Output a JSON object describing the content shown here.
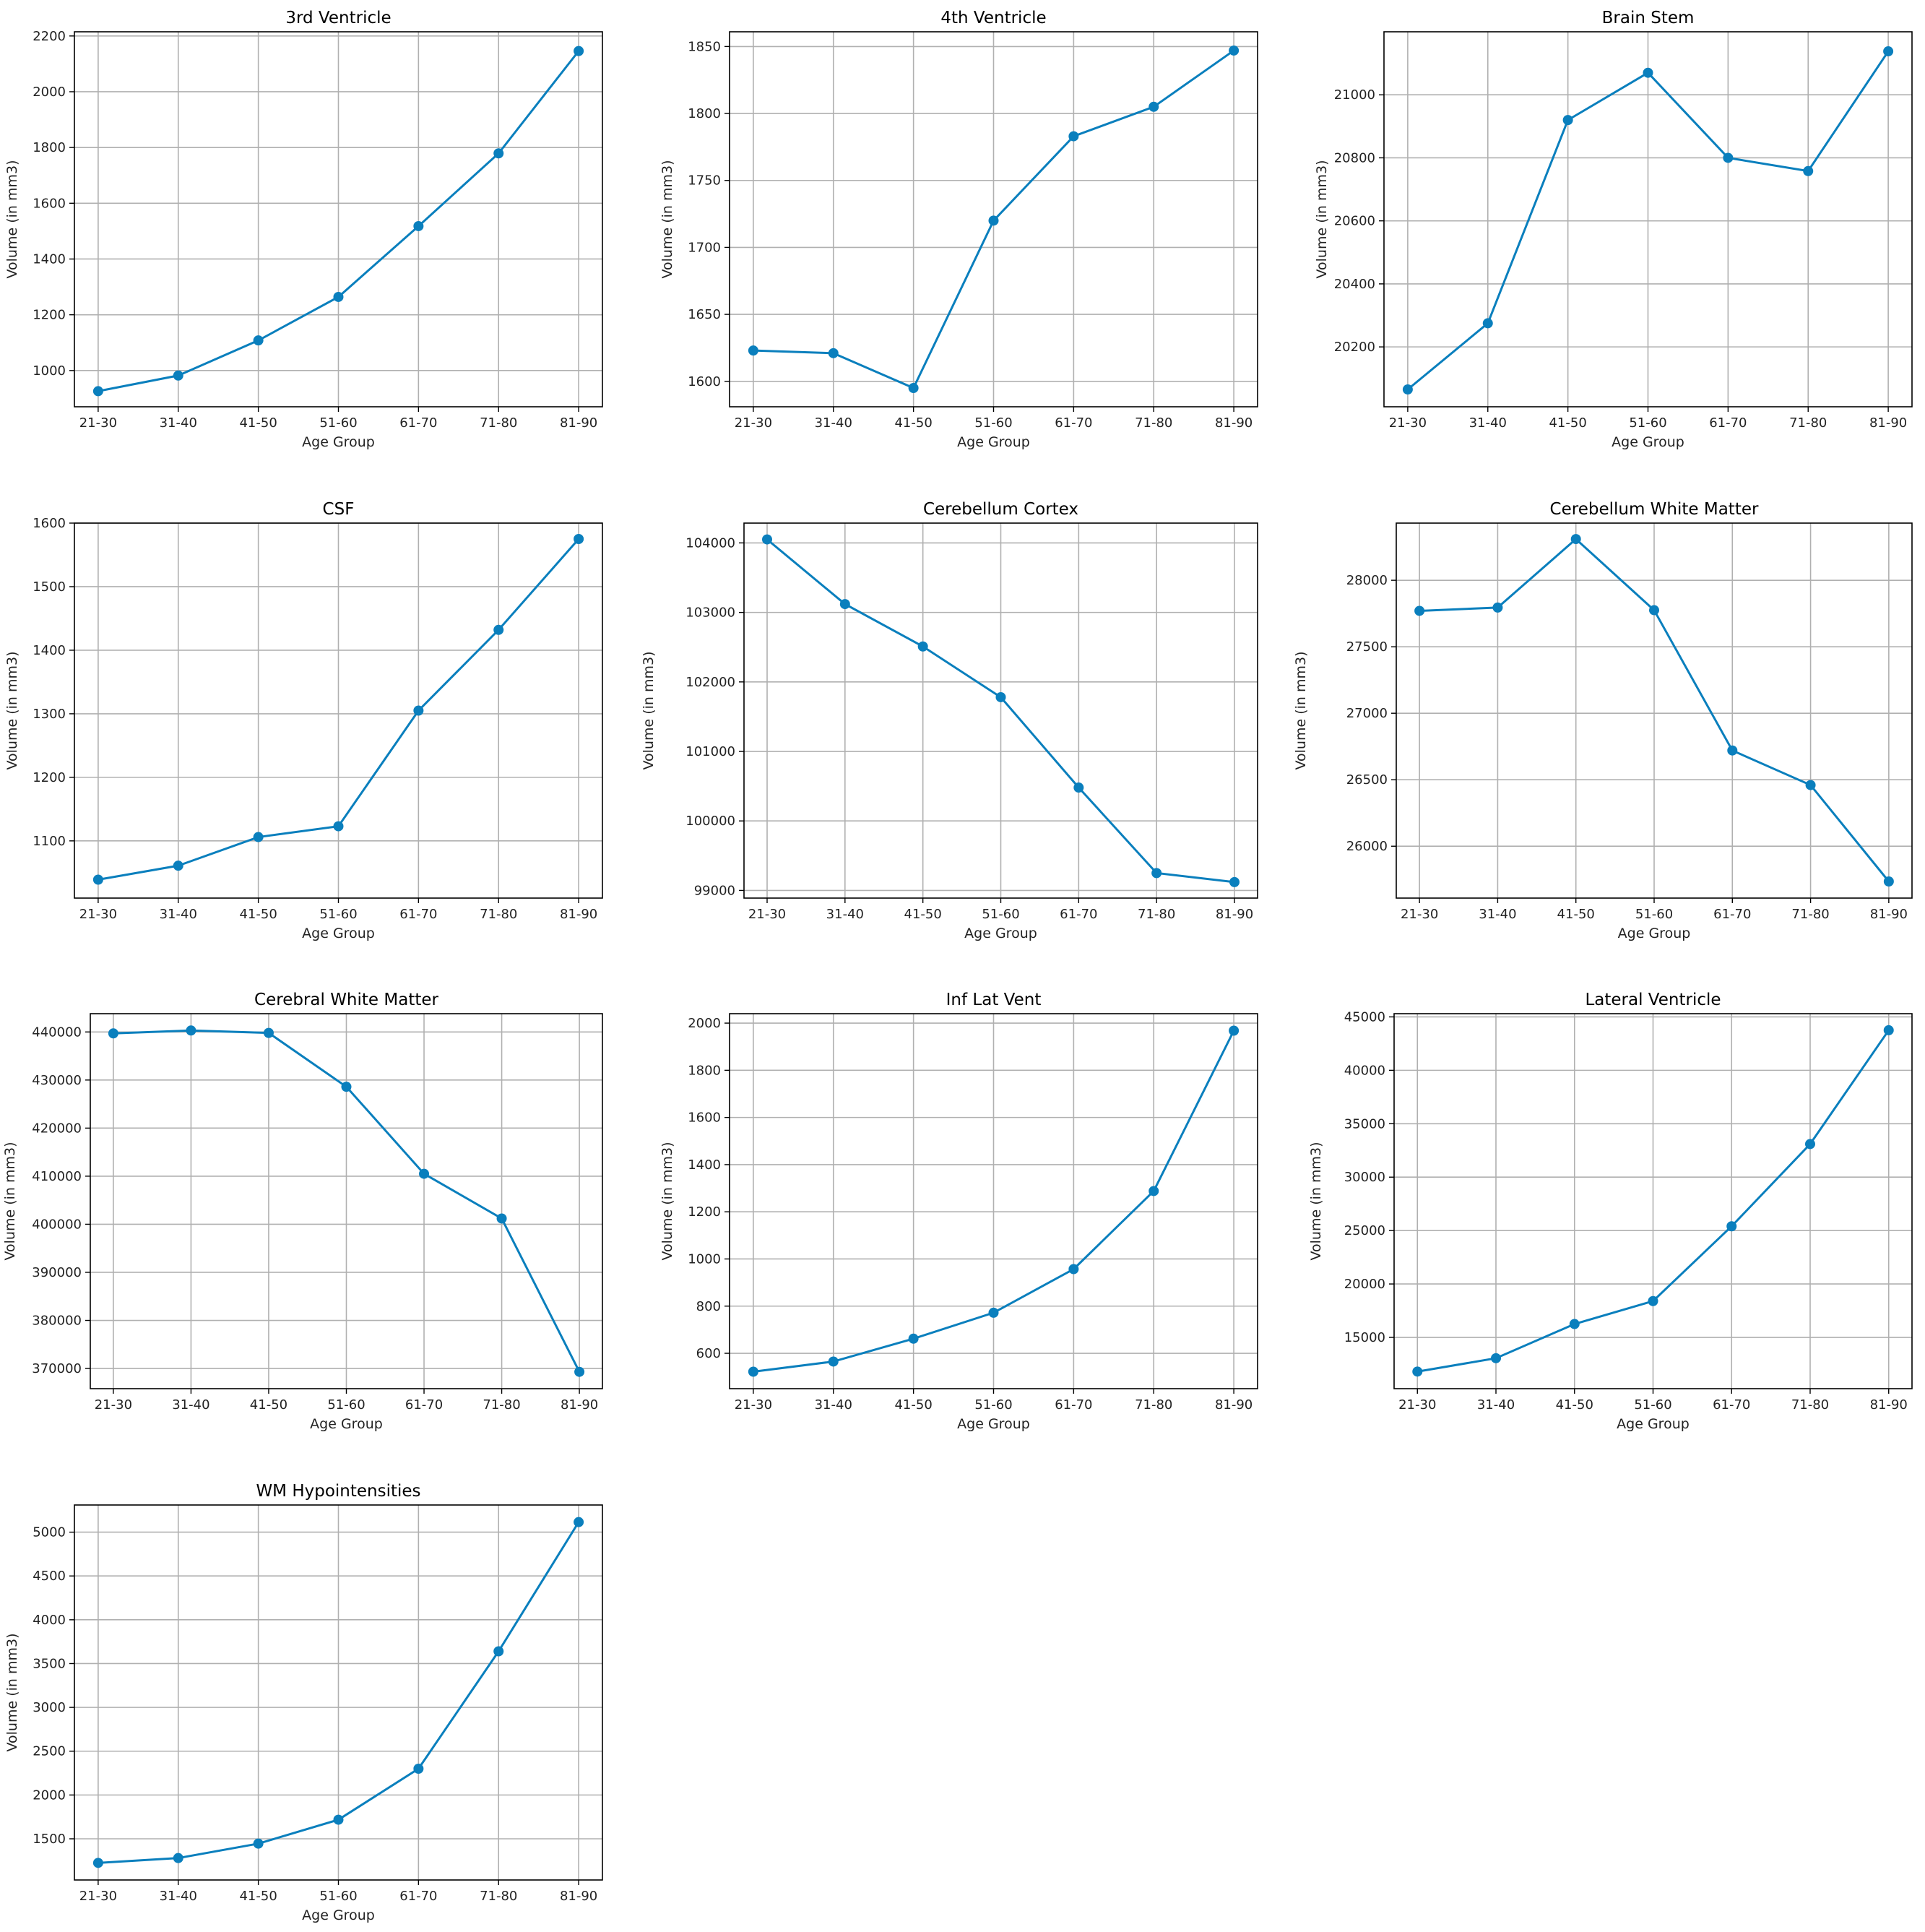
{
  "figure": {
    "layout": "3-column grid of line charts",
    "line_color": "#0a7fbd",
    "grid": true
  },
  "chart_data": [
    {
      "type": "line",
      "title": "3rd Ventricle",
      "xlabel": "Age Group",
      "ylabel": "Volume (in mm3)",
      "categories": [
        "21-30",
        "31-40",
        "41-50",
        "51-60",
        "61-70",
        "71-80",
        "81-90"
      ],
      "values": [
        926,
        982,
        1108,
        1264,
        1518,
        1779,
        2146
      ],
      "ylim": [
        870,
        2215
      ],
      "yticks": [
        1000,
        1200,
        1400,
        1600,
        1800,
        2000,
        2200
      ]
    },
    {
      "type": "line",
      "title": "4th Ventricle",
      "xlabel": "Age Group",
      "ylabel": "Volume (in mm3)",
      "categories": [
        "21-30",
        "31-40",
        "41-50",
        "51-60",
        "61-70",
        "71-80",
        "81-90"
      ],
      "values": [
        1623,
        1621,
        1595,
        1720,
        1783,
        1805,
        1847
      ],
      "ylim": [
        1581,
        1861
      ],
      "yticks": [
        1600,
        1650,
        1700,
        1750,
        1800,
        1850
      ]
    },
    {
      "type": "line",
      "title": "Brain Stem",
      "xlabel": "Age Group",
      "ylabel": "Volume (in mm3)",
      "categories": [
        "21-30",
        "31-40",
        "41-50",
        "51-60",
        "61-70",
        "71-80",
        "81-90"
      ],
      "values": [
        20065,
        20275,
        20920,
        21070,
        20800,
        20758,
        21138
      ],
      "ylim": [
        20010,
        21200
      ],
      "yticks": [
        20200,
        20400,
        20600,
        20800,
        21000
      ]
    },
    {
      "type": "line",
      "title": "CSF",
      "xlabel": "Age Group",
      "ylabel": "Volume (in mm3)",
      "categories": [
        "21-30",
        "31-40",
        "41-50",
        "51-60",
        "61-70",
        "71-80",
        "81-90"
      ],
      "values": [
        1039,
        1061,
        1106,
        1123,
        1305,
        1432,
        1575
      ],
      "ylim": [
        1010,
        1600
      ],
      "yticks": [
        1100,
        1200,
        1300,
        1400,
        1500,
        1600
      ]
    },
    {
      "type": "line",
      "title": "Cerebellum Cortex",
      "xlabel": "Age Group",
      "ylabel": "Volume (in mm3)",
      "categories": [
        "21-30",
        "31-40",
        "41-50",
        "51-60",
        "61-70",
        "71-80",
        "81-90"
      ],
      "values": [
        104050,
        103120,
        102510,
        101780,
        100480,
        99250,
        99120
      ],
      "ylim": [
        98890,
        104285
      ],
      "yticks": [
        99000,
        100000,
        101000,
        102000,
        103000,
        104000
      ]
    },
    {
      "type": "line",
      "title": "Cerebellum White Matter",
      "xlabel": "Age Group",
      "ylabel": "Volume (in mm3)",
      "categories": [
        "21-30",
        "31-40",
        "41-50",
        "51-60",
        "61-70",
        "71-80",
        "81-90"
      ],
      "values": [
        27770,
        27795,
        28310,
        27775,
        26720,
        26460,
        25735
      ],
      "ylim": [
        25610,
        28430
      ],
      "yticks": [
        26000,
        26500,
        27000,
        27500,
        28000
      ]
    },
    {
      "type": "line",
      "title": "Cerebral White Matter",
      "xlabel": "Age Group",
      "ylabel": "Volume (in mm3)",
      "categories": [
        "21-30",
        "31-40",
        "41-50",
        "51-60",
        "61-70",
        "71-80",
        "81-90"
      ],
      "values": [
        439700,
        440300,
        439800,
        428600,
        410500,
        401200,
        369300
      ],
      "ylim": [
        365800,
        443800
      ],
      "yticks": [
        370000,
        380000,
        390000,
        400000,
        410000,
        420000,
        430000,
        440000
      ]
    },
    {
      "type": "line",
      "title": "Inf Lat Vent",
      "xlabel": "Age Group",
      "ylabel": "Volume (in mm3)",
      "categories": [
        "21-30",
        "31-40",
        "41-50",
        "51-60",
        "61-70",
        "71-80",
        "81-90"
      ],
      "values": [
        522,
        565,
        662,
        772,
        957,
        1288,
        1968
      ],
      "ylim": [
        450,
        2040
      ],
      "yticks": [
        600,
        800,
        1000,
        1200,
        1400,
        1600,
        1800,
        2000
      ]
    },
    {
      "type": "line",
      "title": "Lateral Ventricle",
      "xlabel": "Age Group",
      "ylabel": "Volume (in mm3)",
      "categories": [
        "21-30",
        "31-40",
        "41-50",
        "51-60",
        "61-70",
        "71-80",
        "81-90"
      ],
      "values": [
        11800,
        13050,
        16250,
        18400,
        25400,
        33100,
        43750
      ],
      "ylim": [
        10200,
        45300
      ],
      "yticks": [
        15000,
        20000,
        25000,
        30000,
        35000,
        40000,
        45000
      ]
    },
    {
      "type": "line",
      "title": "WM Hypointensities",
      "xlabel": "Age Group",
      "ylabel": "Volume (in mm3)",
      "categories": [
        "21-30",
        "31-40",
        "41-50",
        "51-60",
        "61-70",
        "71-80",
        "81-90"
      ],
      "values": [
        1225,
        1280,
        1445,
        1718,
        2300,
        3640,
        5115
      ],
      "ylim": [
        1030,
        5310
      ],
      "yticks": [
        1500,
        2000,
        2500,
        3000,
        3500,
        4000,
        4500,
        5000
      ]
    }
  ]
}
